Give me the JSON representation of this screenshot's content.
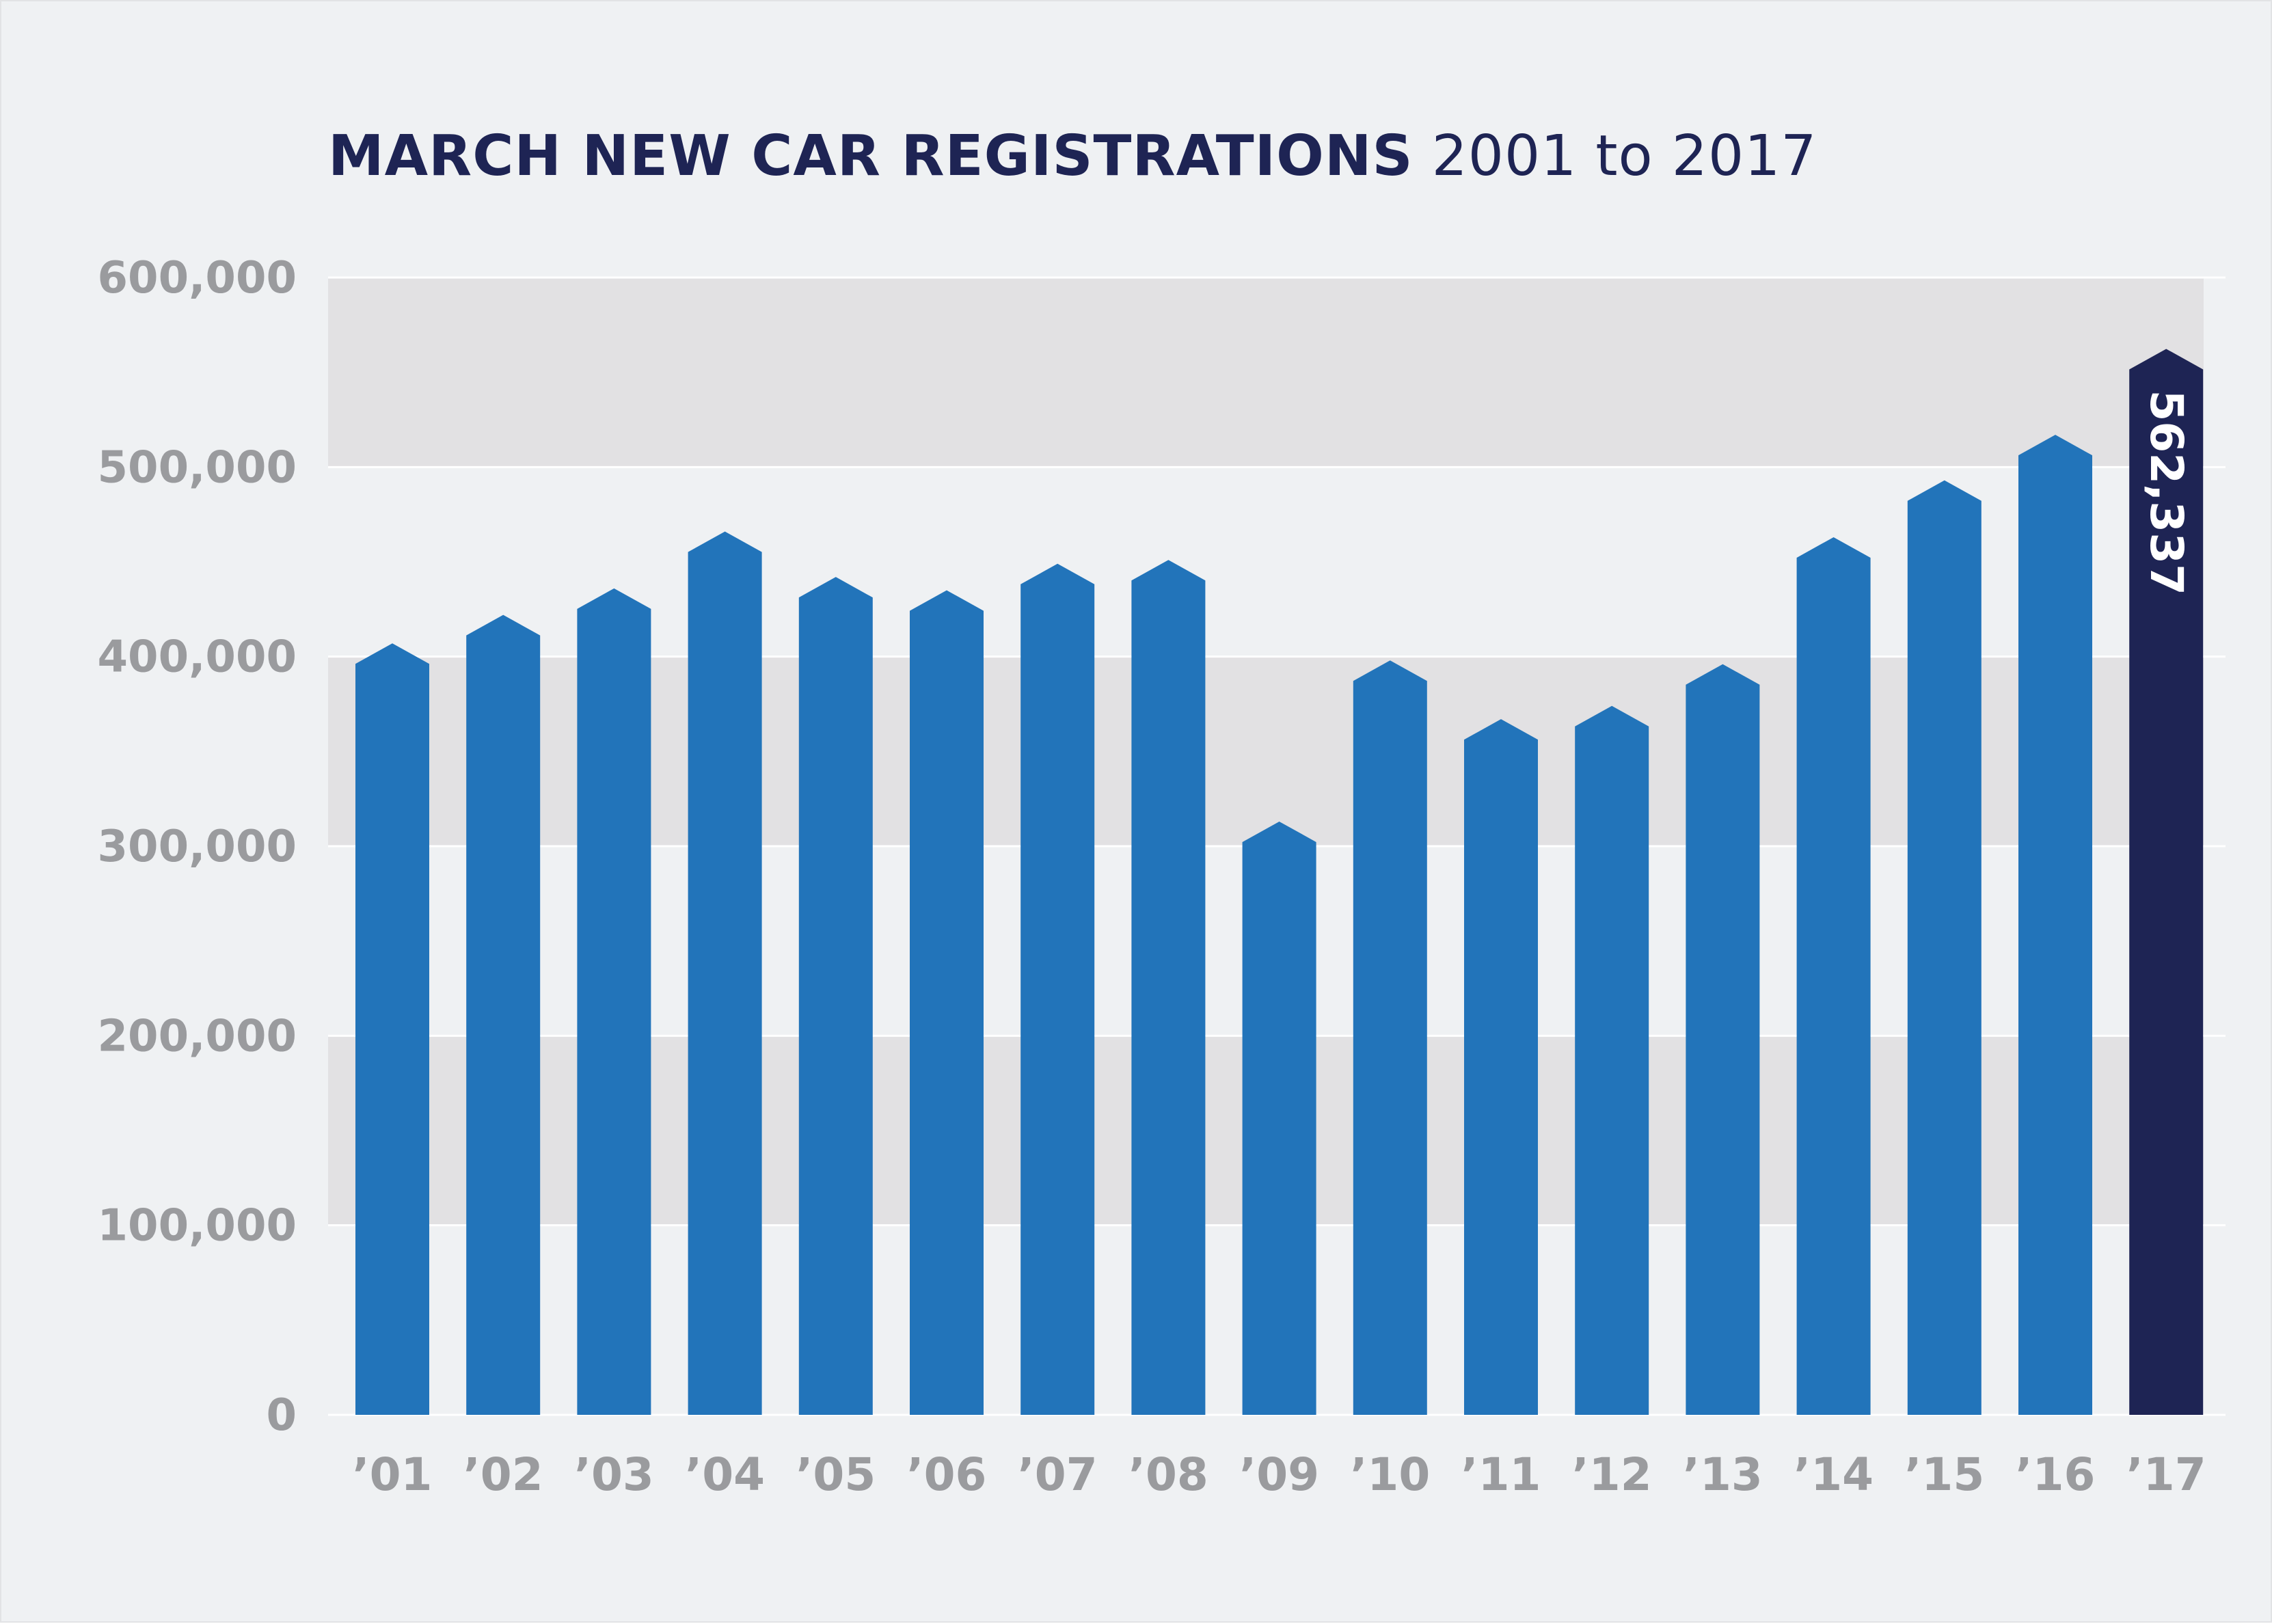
{
  "chart_data": {
    "type": "bar",
    "title_bold": "MARCH NEW CAR REGISTRATIONS",
    "title_light": "2001 to 2017",
    "xlabel": "",
    "ylabel": "",
    "ylim": [
      0,
      600000
    ],
    "yticks": [
      0,
      100000,
      200000,
      300000,
      400000,
      500000,
      600000
    ],
    "ytick_labels": [
      "0",
      "100,000",
      "200,000",
      "300,000",
      "400,000",
      "500,000",
      "600,000"
    ],
    "categories": [
      "’01",
      "’02",
      "’03",
      "’04",
      "’05",
      "’06",
      "’07",
      "’08",
      "’09",
      "’10",
      "’11",
      "’12",
      "’13",
      "’14",
      "’15",
      "’16",
      "’17"
    ],
    "values": [
      407000,
      422000,
      436000,
      466000,
      442000,
      435000,
      449000,
      451000,
      313000,
      398000,
      367000,
      374000,
      396000,
      463000,
      493000,
      517000,
      562337
    ],
    "highlight_index": 16,
    "highlight_label": "562,337",
    "grid": true,
    "legend": "none"
  },
  "colors": {
    "background": "#eff1f3",
    "band": "#e2e1e3",
    "gridline": "#ffffff",
    "bar": "#2274ba",
    "highlight": "#1e2454",
    "tick_text": "#9a9b9e",
    "title": "#1e2454"
  }
}
